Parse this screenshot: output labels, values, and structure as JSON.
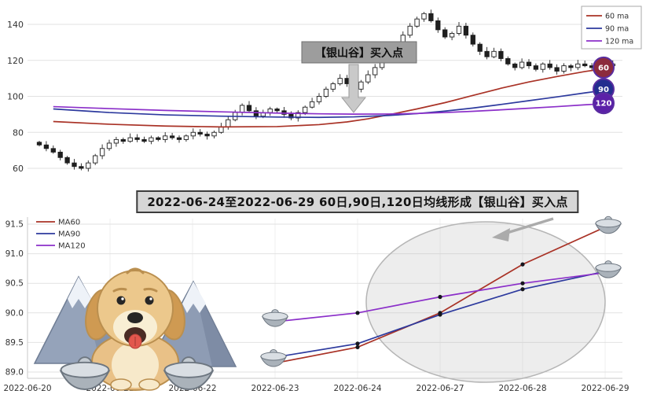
{
  "title_banner": {
    "text": "2022-06-24至2022-06-29 60日,90日,120日均线形成【银山谷】买入点"
  },
  "colors": {
    "ma60": "#a93226",
    "ma90": "#2d3a9e",
    "ma120": "#8b2fc9",
    "candle_up": "#ffffff",
    "candle_down": "#1f1f1f",
    "grid": "#e2e2e2",
    "axis_text": "#333333",
    "annotation_box": "#9d9d9d",
    "arrow": "#c9c9c9",
    "ellipse": "#b5b5b5"
  },
  "icons": {
    "down-arrow-icon": "gray block arrow pointing down (SVG polygon)",
    "pointer-arrow-icon": "gray arrow pointing at highlight ellipse (SVG line + triangle)",
    "silver-ingot-icon": "yuanbao silver ingot (SVG ellipse + hull + bump)",
    "dog-icon": "golden retriever cartoon mascot (SVG shapes)",
    "mountain-icon": "snow-capped mountain (SVG polygons)"
  },
  "chart_data": [
    {
      "type": "candlestick",
      "title": "",
      "legend": [
        "60 ma",
        "90 ma",
        "120 ma"
      ],
      "legend_position": "top-right",
      "y_ticks": [
        60,
        80,
        100,
        120,
        140
      ],
      "ylim": [
        55,
        150
      ],
      "grid": true,
      "closes": [
        73,
        71,
        69,
        66,
        63,
        61,
        60,
        63,
        67,
        71,
        74,
        76,
        75,
        77,
        76,
        75,
        77,
        76,
        78,
        77,
        76,
        78,
        80,
        79,
        78,
        80,
        83,
        87,
        91,
        95,
        92,
        89,
        91,
        93,
        92,
        90,
        88,
        91,
        94,
        97,
        100,
        104,
        107,
        110,
        107,
        104,
        108,
        112,
        116,
        121,
        125,
        129,
        134,
        139,
        143,
        146,
        142,
        137,
        133,
        135,
        139,
        134,
        129,
        125,
        122,
        125,
        121,
        118,
        116,
        119,
        117,
        115,
        118,
        116,
        114,
        117,
        116,
        118,
        117,
        116,
        118,
        117,
        118
      ],
      "ma_lines": {
        "ma60": {
          "color": "#a93226",
          "points": [
            [
              2,
              86
            ],
            [
              10,
              84.5
            ],
            [
              18,
              83.5
            ],
            [
              26,
              83
            ],
            [
              34,
              83.2
            ],
            [
              40,
              84.3
            ],
            [
              44,
              85.8
            ],
            [
              47,
              87.5
            ],
            [
              50,
              89.8
            ],
            [
              54,
              93
            ],
            [
              58,
              96.5
            ],
            [
              62,
              100.5
            ],
            [
              66,
              104.5
            ],
            [
              70,
              108
            ],
            [
              74,
              111
            ],
            [
              78,
              113.8
            ],
            [
              82,
              116
            ]
          ]
        },
        "ma90": {
          "color": "#2d3a9e",
          "points": [
            [
              2,
              93
            ],
            [
              10,
              91
            ],
            [
              18,
              89.7
            ],
            [
              26,
              89
            ],
            [
              34,
              88.5
            ],
            [
              40,
              88.3
            ],
            [
              45,
              88.6
            ],
            [
              50,
              89.4
            ],
            [
              54,
              90.4
            ],
            [
              58,
              91.8
            ],
            [
              62,
              93.5
            ],
            [
              66,
              95.5
            ],
            [
              70,
              97.6
            ],
            [
              74,
              99.7
            ],
            [
              78,
              101.9
            ],
            [
              82,
              104
            ]
          ]
        },
        "ma120": {
          "color": "#8b2fc9",
          "points": [
            [
              2,
              94.3
            ],
            [
              10,
              93.2
            ],
            [
              18,
              92.2
            ],
            [
              26,
              91.4
            ],
            [
              34,
              90.7
            ],
            [
              40,
              90.3
            ],
            [
              45,
              90.1
            ],
            [
              50,
              90.2
            ],
            [
              54,
              90.5
            ],
            [
              58,
              91
            ],
            [
              62,
              91.7
            ],
            [
              66,
              92.5
            ],
            [
              70,
              93.4
            ],
            [
              74,
              94.3
            ],
            [
              78,
              95.3
            ],
            [
              82,
              96.2
            ]
          ]
        }
      },
      "annotation": {
        "text": "【银山谷】买入点"
      },
      "end_badges": [
        {
          "label": "60",
          "color": "#8c2b3d"
        },
        {
          "label": "90",
          "color": "#232e8f"
        },
        {
          "label": "120",
          "color": "#5b21a8"
        }
      ]
    },
    {
      "type": "line",
      "legend": [
        "MA60",
        "MA90",
        "MA120"
      ],
      "legend_position": "top-left",
      "x_ticks": [
        "2022-06-20",
        "2022-06-21",
        "2022-06-22",
        "2022-06-23",
        "2022-06-24",
        "2022-06-27",
        "2022-06-28",
        "2022-06-29"
      ],
      "y_ticks": [
        89.0,
        89.5,
        90.0,
        90.5,
        91.0,
        91.5
      ],
      "ylim": [
        88.8,
        91.7
      ],
      "grid": true,
      "series": [
        {
          "name": "MA60",
          "color": "#a93226",
          "values": [
            null,
            null,
            null,
            89.15,
            89.42,
            90.0,
            90.82,
            91.45
          ]
        },
        {
          "name": "MA90",
          "color": "#2d3a9e",
          "values": [
            null,
            null,
            null,
            89.25,
            89.48,
            89.97,
            90.4,
            90.7
          ]
        },
        {
          "name": "MA120",
          "color": "#8b2fc9",
          "values": [
            null,
            null,
            null,
            89.85,
            90.0,
            90.27,
            90.5,
            90.68
          ]
        }
      ],
      "highlight_ellipse": true
    }
  ]
}
